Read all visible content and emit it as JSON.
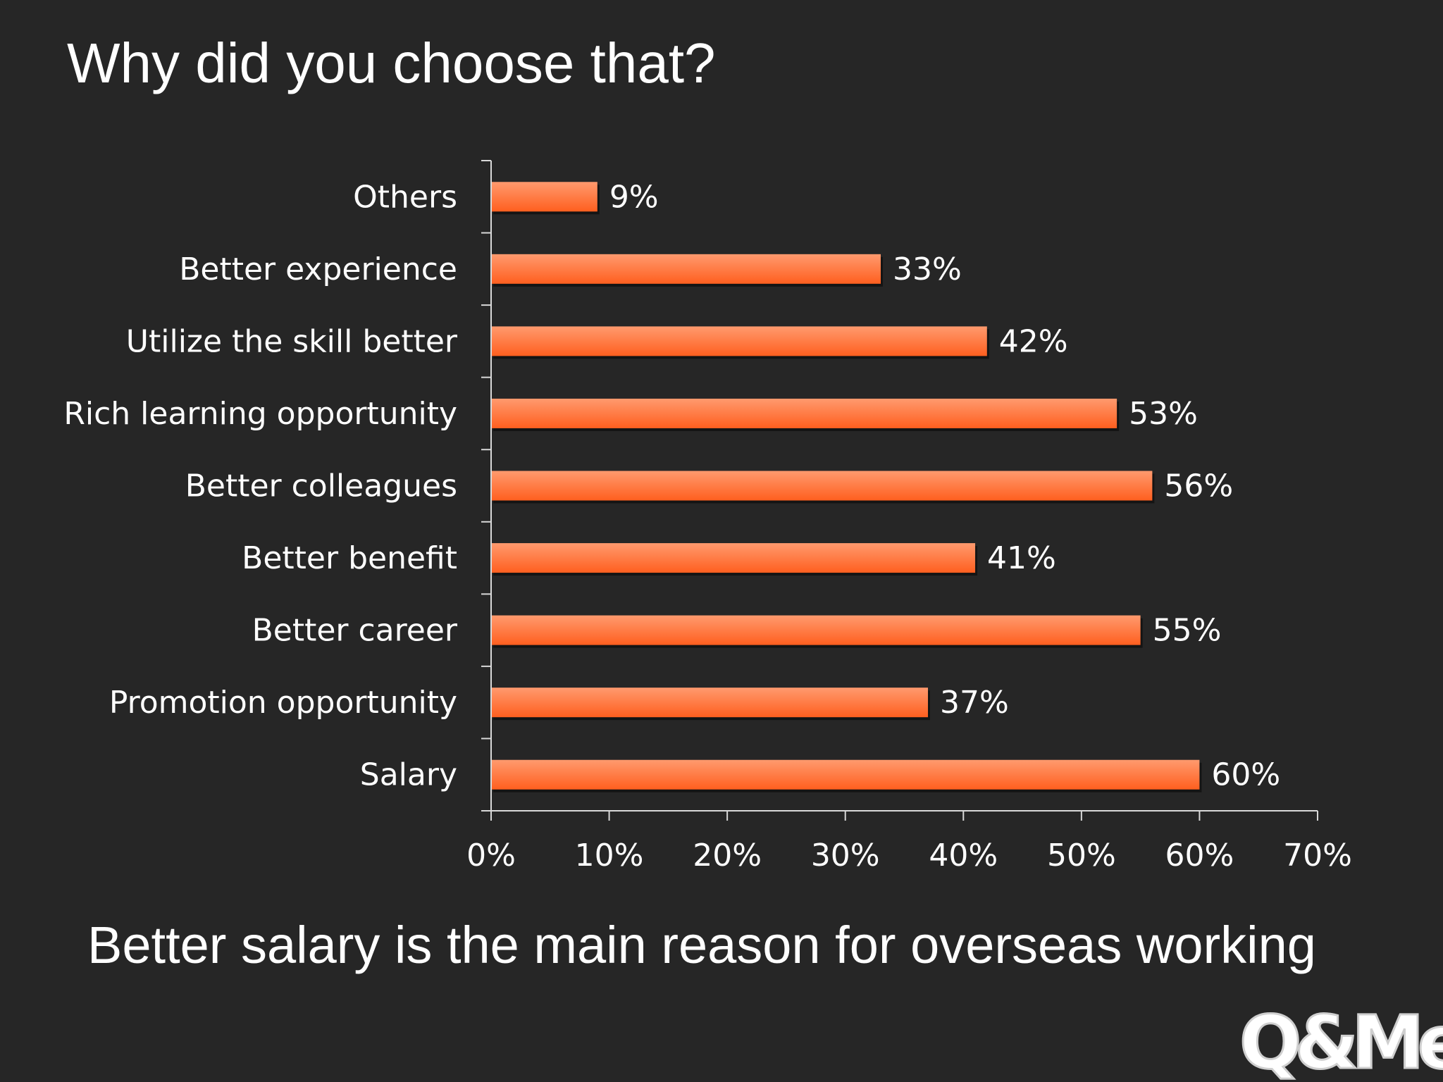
{
  "slide": {
    "title": "Why did you choose that?",
    "caption": "Better salary is the main reason for overseas working",
    "logo_text": "Q&Me"
  },
  "colors": {
    "background": "#262626",
    "bar_light": "#ff9a6e",
    "bar_dark": "#ff5f1f",
    "axis": "#d9d9d9",
    "text": "#ffffff"
  },
  "chart_data": {
    "type": "bar",
    "orientation": "horizontal",
    "categories": [
      "Others",
      "Better experience",
      "Utilize the skill better",
      "Rich learning opportunity",
      "Better colleagues",
      "Better benefit",
      "Better career",
      "Promotion opportunity",
      "Salary"
    ],
    "values": [
      9,
      33,
      42,
      53,
      56,
      41,
      55,
      37,
      60
    ],
    "value_labels": [
      "9%",
      "33%",
      "42%",
      "53%",
      "56%",
      "41%",
      "55%",
      "37%",
      "60%"
    ],
    "x_ticks": [
      "0%",
      "10%",
      "20%",
      "30%",
      "40%",
      "50%",
      "60%",
      "70%"
    ],
    "xlim": [
      0,
      70
    ],
    "xlabel": "",
    "ylabel": "",
    "grid": false,
    "legend": "none"
  }
}
